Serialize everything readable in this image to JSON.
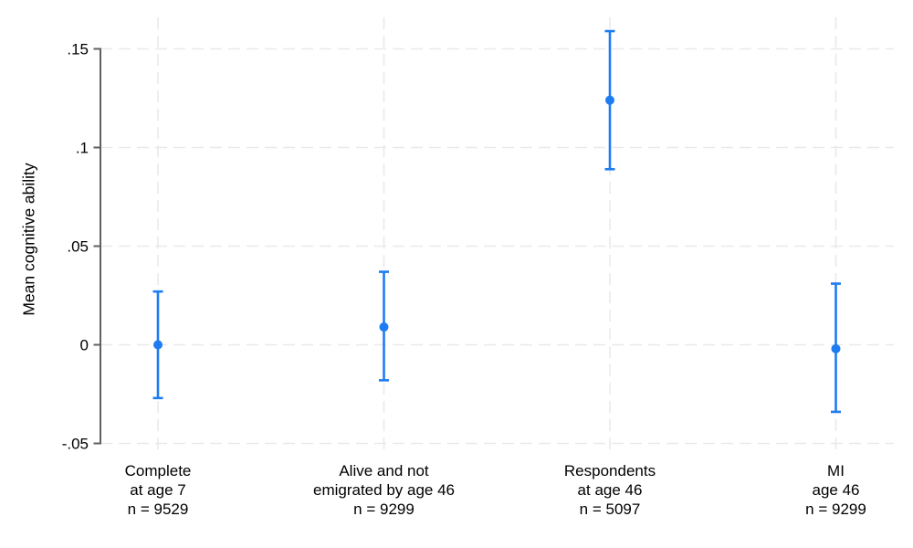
{
  "chart_data": {
    "type": "scatter",
    "subtype": "point-estimates-with-error-bars",
    "title": "",
    "xlabel": "",
    "ylabel": "Mean cognitive ability",
    "ylim": [
      -0.05,
      0.15
    ],
    "yticks": [
      -0.05,
      0,
      0.05,
      0.1,
      0.15
    ],
    "ytick_labels": [
      "-.05",
      "0",
      ".05",
      ".1",
      ".15"
    ],
    "grid": true,
    "legend_position": "none",
    "categories": [
      {
        "lines": [
          "Complete",
          "at age 7",
          "n = 9529"
        ]
      },
      {
        "lines": [
          "Alive and not",
          "emigrated by age 46",
          "n = 9299"
        ]
      },
      {
        "lines": [
          "Respondents",
          "at age 46",
          "n = 5097"
        ]
      },
      {
        "lines": [
          "MI",
          "age 46",
          "n = 9299"
        ]
      }
    ],
    "series": [
      {
        "name": "mean-cognitive-ability",
        "points": [
          {
            "estimate": 0.0,
            "ci_low": -0.027,
            "ci_high": 0.027
          },
          {
            "estimate": 0.009,
            "ci_low": -0.018,
            "ci_high": 0.037
          },
          {
            "estimate": 0.124,
            "ci_low": 0.089,
            "ci_high": 0.159
          },
          {
            "estimate": -0.002,
            "ci_low": -0.034,
            "ci_high": 0.031
          }
        ]
      }
    ],
    "colors": {
      "marker": "#1e7cf2",
      "grid": "#e9e9e9",
      "axis": "#606060",
      "text": "#000000",
      "background": "#ffffff"
    }
  }
}
